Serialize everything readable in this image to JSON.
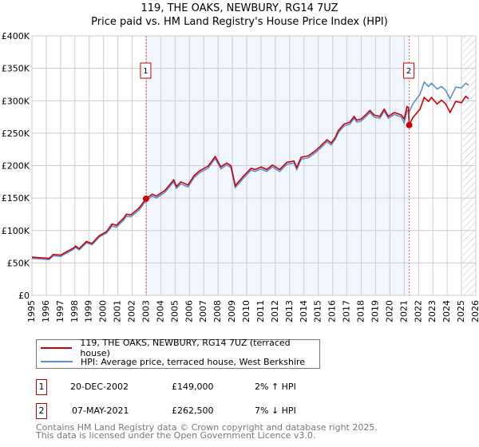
{
  "title": "119, THE OAKS, NEWBURY, RG14 7UZ",
  "subtitle": "Price paid vs. HM Land Registry's House Price Index (HPI)",
  "chart_data": {
    "type": "line",
    "xlim": [
      1995,
      2026
    ],
    "ylim": [
      0,
      400000
    ],
    "x_ticks": [
      "1995",
      "1996",
      "1997",
      "1998",
      "1999",
      "2000",
      "2001",
      "2002",
      "2003",
      "2004",
      "2005",
      "2006",
      "2007",
      "2008",
      "2009",
      "2010",
      "2011",
      "2012",
      "2013",
      "2014",
      "2015",
      "2016",
      "2017",
      "2018",
      "2019",
      "2020",
      "2021",
      "2022",
      "2023",
      "2024",
      "2025",
      "2026"
    ],
    "y_ticks": [
      {
        "v": 0,
        "label": "£0"
      },
      {
        "v": 50000,
        "label": "£50K"
      },
      {
        "v": 100000,
        "label": "£100K"
      },
      {
        "v": 150000,
        "label": "£150K"
      },
      {
        "v": 200000,
        "label": "£200K"
      },
      {
        "v": 250000,
        "label": "£250K"
      },
      {
        "v": 300000,
        "label": "£300K"
      },
      {
        "v": 350000,
        "label": "£350K"
      },
      {
        "v": 400000,
        "label": "£400K"
      }
    ],
    "grid": true,
    "shaded_range": [
      2002.97,
      2021.35
    ],
    "forecast_hatch_from": 2025.1,
    "series": [
      {
        "name": "119, THE OAKS, NEWBURY, RG14 7UZ (terraced house)",
        "color": "#cc0000",
        "unit": "£K",
        "points": [
          [
            1995,
            59
          ],
          [
            1995.6,
            58
          ],
          [
            1996.2,
            57
          ],
          [
            1996.5,
            63
          ],
          [
            1997,
            62
          ],
          [
            1997.9,
            73
          ],
          [
            1998.05,
            76
          ],
          [
            1998.3,
            72
          ],
          [
            1998.8,
            83
          ],
          [
            1999.2,
            80
          ],
          [
            1999.7,
            92
          ],
          [
            2000.2,
            98
          ],
          [
            2000.6,
            110
          ],
          [
            2000.9,
            108
          ],
          [
            2001.4,
            119
          ],
          [
            2001.6,
            125
          ],
          [
            2001.9,
            124
          ],
          [
            2002.5,
            135
          ],
          [
            2002.97,
            149
          ],
          [
            2003.4,
            156
          ],
          [
            2003.7,
            153
          ],
          [
            2004.3,
            162
          ],
          [
            2004.9,
            178
          ],
          [
            2005.1,
            168
          ],
          [
            2005.4,
            175
          ],
          [
            2005.9,
            170
          ],
          [
            2006.3,
            184
          ],
          [
            2006.7,
            192
          ],
          [
            2007.3,
            199
          ],
          [
            2007.8,
            214
          ],
          [
            2008.2,
            198
          ],
          [
            2008.6,
            204
          ],
          [
            2008.9,
            200
          ],
          [
            2009.2,
            169
          ],
          [
            2009.7,
            182
          ],
          [
            2010.3,
            196
          ],
          [
            2010.6,
            194
          ],
          [
            2011,
            198
          ],
          [
            2011.4,
            194
          ],
          [
            2011.8,
            201
          ],
          [
            2012.3,
            194
          ],
          [
            2012.8,
            205
          ],
          [
            2013.3,
            207
          ],
          [
            2013.5,
            197
          ],
          [
            2013.8,
            213
          ],
          [
            2014.3,
            215
          ],
          [
            2014.8,
            223
          ],
          [
            2015.2,
            231
          ],
          [
            2015.6,
            240
          ],
          [
            2015.9,
            235
          ],
          [
            2016.2,
            244
          ],
          [
            2016.4,
            254
          ],
          [
            2016.8,
            264
          ],
          [
            2017.2,
            267
          ],
          [
            2017.5,
            276
          ],
          [
            2017.7,
            270
          ],
          [
            2018,
            272
          ],
          [
            2018.3,
            278
          ],
          [
            2018.6,
            285
          ],
          [
            2018.9,
            278
          ],
          [
            2019.3,
            276
          ],
          [
            2019.6,
            287
          ],
          [
            2019.9,
            276
          ],
          [
            2020.3,
            282
          ],
          [
            2020.8,
            278
          ],
          [
            2021.0,
            272
          ],
          [
            2021.2,
            291
          ],
          [
            2021.3,
            289
          ],
          [
            2021.35,
            262.5
          ],
          [
            2021.6,
            274
          ],
          [
            2022.1,
            287
          ],
          [
            2022.4,
            305
          ],
          [
            2022.7,
            299
          ],
          [
            2022.9,
            305
          ],
          [
            2023.3,
            295
          ],
          [
            2023.6,
            301
          ],
          [
            2023.9,
            295
          ],
          [
            2024.2,
            282
          ],
          [
            2024.6,
            299
          ],
          [
            2025,
            297
          ],
          [
            2025.3,
            307
          ],
          [
            2025.5,
            303
          ]
        ]
      },
      {
        "name": "HPI: Average price, terraced house, West Berkshire",
        "color": "#5b8fd0",
        "unit": "£K",
        "points": [
          [
            1995,
            57
          ],
          [
            1995.6,
            56
          ],
          [
            1996.2,
            55
          ],
          [
            1996.5,
            61
          ],
          [
            1997,
            60
          ],
          [
            1997.9,
            71
          ],
          [
            1998.05,
            74
          ],
          [
            1998.3,
            70
          ],
          [
            1998.8,
            81
          ],
          [
            1999.2,
            78
          ],
          [
            1999.7,
            90
          ],
          [
            2000.2,
            96
          ],
          [
            2000.6,
            107
          ],
          [
            2000.9,
            105
          ],
          [
            2001.4,
            116
          ],
          [
            2001.6,
            122
          ],
          [
            2001.9,
            121
          ],
          [
            2002.5,
            132
          ],
          [
            2002.97,
            146
          ],
          [
            2003.4,
            153
          ],
          [
            2003.7,
            150
          ],
          [
            2004.3,
            159
          ],
          [
            2004.9,
            175
          ],
          [
            2005.1,
            165
          ],
          [
            2005.4,
            172
          ],
          [
            2005.9,
            167
          ],
          [
            2006.3,
            181
          ],
          [
            2006.7,
            189
          ],
          [
            2007.3,
            196
          ],
          [
            2007.8,
            211
          ],
          [
            2008.2,
            195
          ],
          [
            2008.6,
            201
          ],
          [
            2008.9,
            197
          ],
          [
            2009.2,
            166
          ],
          [
            2009.7,
            179
          ],
          [
            2010.3,
            193
          ],
          [
            2010.6,
            191
          ],
          [
            2011,
            195
          ],
          [
            2011.4,
            191
          ],
          [
            2011.8,
            198
          ],
          [
            2012.3,
            191
          ],
          [
            2012.8,
            202
          ],
          [
            2013.3,
            204
          ],
          [
            2013.5,
            194
          ],
          [
            2013.8,
            210
          ],
          [
            2014.3,
            212
          ],
          [
            2014.8,
            220
          ],
          [
            2015.2,
            228
          ],
          [
            2015.6,
            237
          ],
          [
            2015.9,
            232
          ],
          [
            2016.2,
            241
          ],
          [
            2016.4,
            251
          ],
          [
            2016.8,
            261
          ],
          [
            2017.2,
            264
          ],
          [
            2017.5,
            273
          ],
          [
            2017.7,
            267
          ],
          [
            2018,
            269
          ],
          [
            2018.3,
            275
          ],
          [
            2018.6,
            282
          ],
          [
            2018.9,
            275
          ],
          [
            2019.3,
            273
          ],
          [
            2019.6,
            284
          ],
          [
            2019.9,
            273
          ],
          [
            2020.3,
            279
          ],
          [
            2020.8,
            275
          ],
          [
            2021.0,
            266
          ],
          [
            2021.2,
            285
          ],
          [
            2021.3,
            284
          ],
          [
            2021.35,
            283
          ],
          [
            2021.6,
            295
          ],
          [
            2022.1,
            310
          ],
          [
            2022.4,
            329
          ],
          [
            2022.7,
            322
          ],
          [
            2022.9,
            327
          ],
          [
            2023.3,
            318
          ],
          [
            2023.6,
            322
          ],
          [
            2023.9,
            316
          ],
          [
            2024.2,
            303
          ],
          [
            2024.6,
            321
          ],
          [
            2025,
            320
          ],
          [
            2025.3,
            327
          ],
          [
            2025.5,
            324
          ]
        ]
      }
    ],
    "sales": [
      {
        "id": "1",
        "year": 2002.97,
        "price": 149000
      },
      {
        "id": "2",
        "year": 2021.35,
        "price": 262500
      }
    ],
    "legend_position": "below"
  },
  "legend": {
    "property": "119, THE OAKS, NEWBURY, RG14 7UZ (terraced house)",
    "hpi": "HPI: Average price, terraced house, West Berkshire"
  },
  "sales_table": [
    {
      "id": "1",
      "date": "20-DEC-2002",
      "price": "£149,000",
      "hpi": "2% ↑ HPI"
    },
    {
      "id": "2",
      "date": "07-MAY-2021",
      "price": "£262,500",
      "hpi": "7% ↓ HPI"
    }
  ],
  "footer": {
    "line1": "Contains HM Land Registry data © Crown copyright and database right 2025.",
    "line2": "This data is licensed under the Open Government Licence v3.0."
  }
}
